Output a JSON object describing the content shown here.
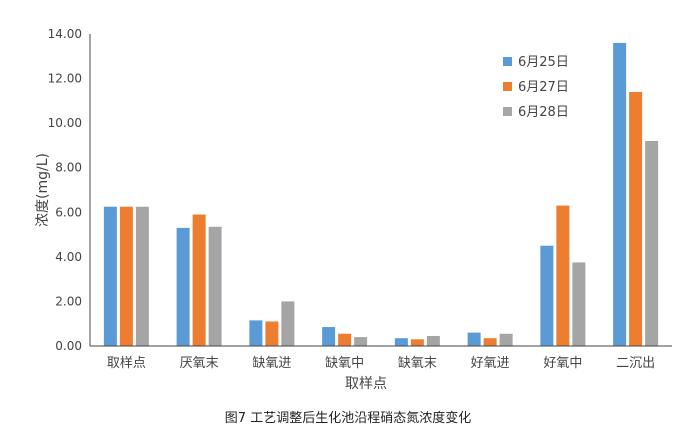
{
  "chart_data": {
    "type": "bar",
    "categories": [
      "取样点",
      "厌氧末",
      "缺氧进",
      "缺氧中",
      "缺氧末",
      "好氧进",
      "好氧中",
      "二沉出"
    ],
    "series": [
      {
        "name": "6月25日",
        "color": "#5B9BD5",
        "values": [
          6.25,
          5.3,
          1.15,
          0.85,
          0.35,
          0.6,
          4.5,
          13.6
        ]
      },
      {
        "name": "6月27日",
        "color": "#ED7D31",
        "values": [
          6.25,
          5.9,
          1.1,
          0.55,
          0.3,
          0.35,
          6.3,
          11.4
        ]
      },
      {
        "name": "6月28日",
        "color": "#A5A5A5",
        "values": [
          6.25,
          5.35,
          2.0,
          0.4,
          0.45,
          0.55,
          3.75,
          9.2
        ]
      }
    ],
    "xlabel": "取样点",
    "ylabel": "浓度(mg/L)",
    "ylim": [
      0,
      14
    ],
    "yticks": [
      "0.00",
      "2.00",
      "4.00",
      "6.00",
      "8.00",
      "10.00",
      "12.00",
      "14.00"
    ],
    "grid": false,
    "legend": "top-right"
  },
  "caption": "图7 工艺调整后生化池沿程硝态氮浓度变化"
}
